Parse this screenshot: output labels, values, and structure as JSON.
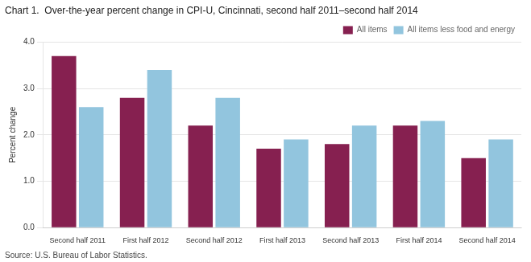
{
  "chart_data": {
    "type": "bar",
    "title": "Chart 1.  Over-the-year percent change in CPI-U, Cincinnati, second half 2011–second half 2014",
    "ylabel": "Percent change",
    "annotations": [
      "Source: U.S. Bureau of Labor Statistics."
    ],
    "categories": [
      "Second half 2011",
      "First half 2012",
      "Second half 2012",
      "First half 2013",
      "Second half 2013",
      "First half 2014",
      "Second half 2014"
    ],
    "series": [
      {
        "name": "All items",
        "color": "#862050",
        "values": [
          3.7,
          2.8,
          2.2,
          1.7,
          1.8,
          2.2,
          1.5
        ]
      },
      {
        "name": "All items less food and energy",
        "color": "#92C5DE",
        "values": [
          2.6,
          3.4,
          2.8,
          1.9,
          2.2,
          2.3,
          1.9
        ]
      }
    ],
    "ylim": [
      0,
      4.0
    ],
    "yticks": [
      {
        "value": 0.0,
        "label": "0.0"
      },
      {
        "value": 1.0,
        "label": "1.0"
      },
      {
        "value": 2.0,
        "label": "2.0"
      },
      {
        "value": 3.0,
        "label": "3.0"
      },
      {
        "value": 4.0,
        "label": "4.0"
      }
    ],
    "grid": true,
    "legend": "upper right"
  }
}
